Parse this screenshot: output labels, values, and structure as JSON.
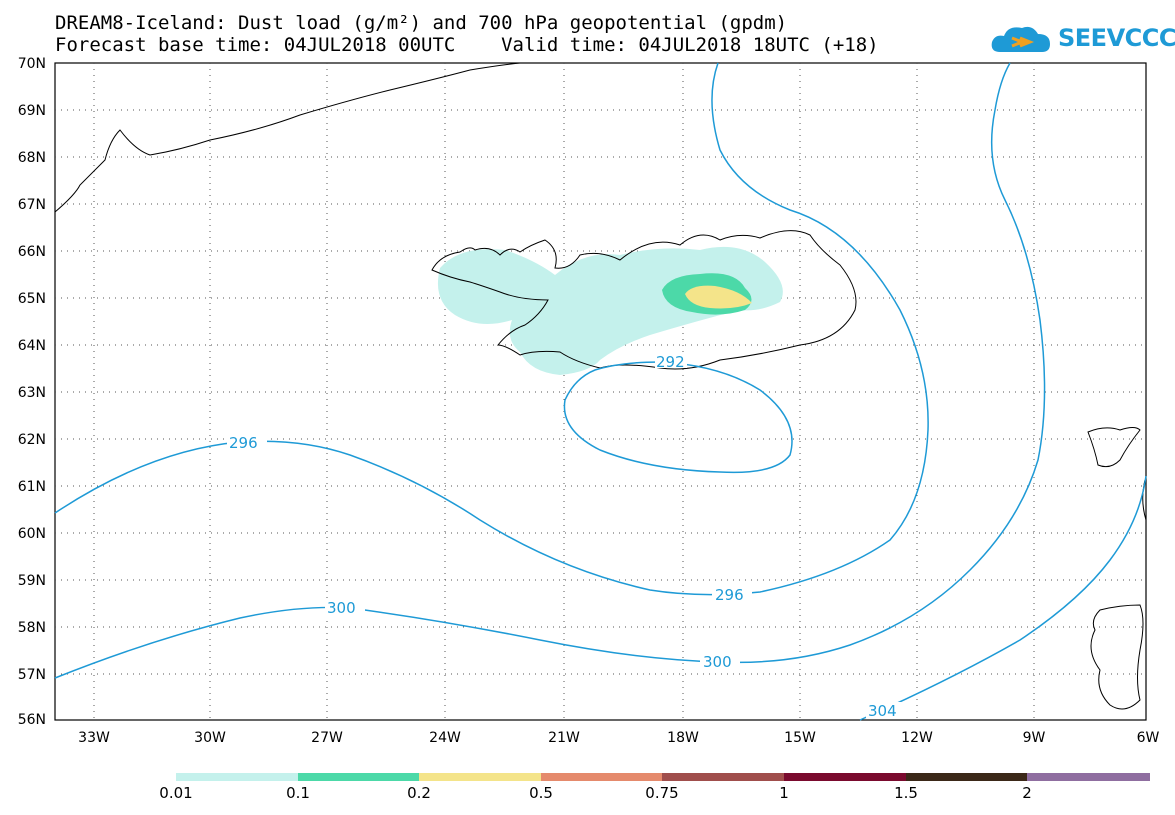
{
  "header": {
    "title_line1": "DREAM8-Iceland: Dust load (g/m²) and 700 hPa geopotential (gpdm)",
    "title_line2": "Forecast base time: 04JUL2018 00UTC    Valid time: 04JUL2018 18UTC (+18)"
  },
  "logo": {
    "text": "SEEVCCC",
    "icon": "cloud-arrow-icon",
    "color": "#1e9ad6"
  },
  "map": {
    "lat_labels": [
      "70N",
      "69N",
      "68N",
      "67N",
      "66N",
      "65N",
      "64N",
      "63N",
      "62N",
      "61N",
      "60N",
      "59N",
      "58N",
      "57N",
      "56N"
    ],
    "lon_labels": [
      "33W",
      "30W",
      "27W",
      "24W",
      "21W",
      "18W",
      "15W",
      "12W",
      "9W",
      "6W"
    ],
    "contour_color": "#1e9ad6",
    "contour_labels": [
      "296",
      "296",
      "300",
      "304",
      "292"
    ]
  },
  "colorbar": {
    "labels": [
      "0.01",
      "0.1",
      "0.2",
      "0.5",
      "0.75",
      "1",
      "1.5",
      "2"
    ],
    "colors": [
      "#c4f1ec",
      "#4cd9a8",
      "#f4e48a",
      "#e58a6c",
      "#a04e4c",
      "#7a0a2e",
      "#3b2818",
      "#8f6ea0"
    ]
  }
}
